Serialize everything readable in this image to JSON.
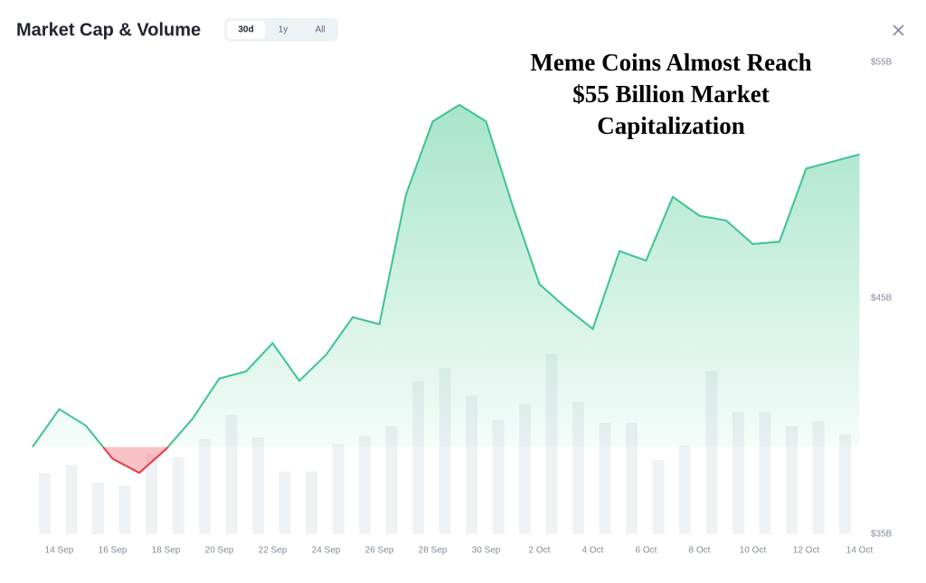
{
  "chart_data": {
    "type": "line",
    "title": "Market Cap & Volume",
    "tabs": [
      "30d",
      "1y",
      "All"
    ],
    "selected_tab": 0,
    "annotation": [
      "Meme Coins Almost Reach",
      "$55 Billion Market",
      "Capitalization"
    ],
    "categories": [
      null,
      "14 Sep",
      null,
      "16 Sep",
      null,
      "18 Sep",
      null,
      "20 Sep",
      null,
      "22 Sep",
      null,
      "24 Sep",
      null,
      "26 Sep",
      null,
      "28 Sep",
      null,
      "30 Sep",
      null,
      "2 Oct",
      null,
      "4 Oct",
      null,
      "6 Oct",
      null,
      "8 Oct",
      null,
      "10 Oct",
      null,
      "12 Oct",
      null,
      "14 Oct"
    ],
    "values": [
      38.7,
      40.3,
      39.6,
      38.2,
      37.6,
      38.6,
      39.9,
      41.6,
      41.9,
      43.1,
      41.5,
      42.6,
      44.2,
      43.9,
      49.4,
      52.5,
      53.2,
      52.5,
      48.9,
      45.6,
      44.6,
      43.7,
      47.0,
      46.6,
      49.3,
      48.5,
      48.3,
      47.3,
      47.4,
      50.5,
      50.8,
      51.1
    ],
    "color": "#3cc48d",
    "negative_color": "#ea3943",
    "volume": [
      38,
      43,
      32,
      30,
      50,
      48,
      59,
      74,
      60,
      39,
      39,
      56,
      61,
      67,
      95,
      103,
      86,
      71,
      81,
      112,
      82,
      69,
      69,
      46,
      55,
      101,
      76,
      76,
      67,
      70,
      62,
      null
    ],
    "volume_color": "#eff2f5",
    "volume_lim": [
      0,
      300
    ],
    "ylim": [
      35,
      55.5
    ],
    "yticks": [
      {
        "value": 35,
        "label": "$35B"
      },
      {
        "value": 45,
        "label": "$45B"
      },
      {
        "value": 55,
        "label": "$55B"
      }
    ]
  }
}
